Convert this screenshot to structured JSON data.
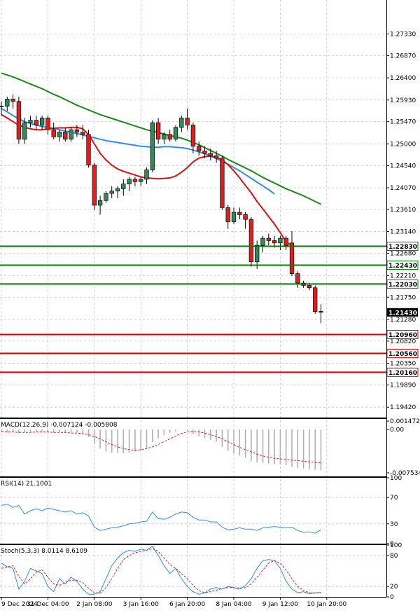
{
  "chart_data": {
    "type": "candlestick",
    "main": {
      "ylim": [
        1.192,
        1.2805
      ],
      "y_ticks": [
        "1.27330",
        "1.26870",
        "1.26400",
        "1.25930",
        "1.25470",
        "1.25000",
        "1.24540",
        "1.24070",
        "1.23610",
        "1.23140",
        "1.22680",
        "1.22210",
        "1.21750",
        "1.21280",
        "1.20820",
        "1.20350",
        "1.19890",
        "1.19420"
      ],
      "current_price": "1.21430",
      "levels": [
        {
          "value": 1.2283,
          "label": "1.22830",
          "color": "#008000"
        },
        {
          "value": 1.2243,
          "label": "1.22430",
          "color": "#008000"
        },
        {
          "value": 1.2203,
          "label": "1.22030",
          "color": "#008000"
        },
        {
          "value": 1.2096,
          "label": "1.20960",
          "color": "#dd0000"
        },
        {
          "value": 1.2056,
          "label": "1.20560",
          "color": "#dd0000"
        },
        {
          "value": 1.2016,
          "label": "1.20160",
          "color": "#dd0000"
        }
      ],
      "candles": [
        [
          1.258,
          1.259,
          1.256,
          1.258
        ],
        [
          1.258,
          1.26,
          1.257,
          1.2595
        ],
        [
          1.2595,
          1.2605,
          1.2575,
          1.259
        ],
        [
          1.259,
          1.26,
          1.25,
          1.251
        ],
        [
          1.251,
          1.2555,
          1.25,
          1.2545
        ],
        [
          1.2545,
          1.256,
          1.2535,
          1.255
        ],
        [
          1.255,
          1.256,
          1.253,
          1.254
        ],
        [
          1.254,
          1.256,
          1.253,
          1.2555
        ],
        [
          1.2555,
          1.256,
          1.252,
          1.253
        ],
        [
          1.253,
          1.2545,
          1.251,
          1.2515
        ],
        [
          1.2515,
          1.253,
          1.2505,
          1.2525
        ],
        [
          1.2525,
          1.2535,
          1.2505,
          1.251
        ],
        [
          1.251,
          1.2535,
          1.2505,
          1.253
        ],
        [
          1.253,
          1.254,
          1.2515,
          1.2525
        ],
        [
          1.2525,
          1.254,
          1.251,
          1.252
        ],
        [
          1.252,
          1.253,
          1.245,
          1.2455
        ],
        [
          1.2455,
          1.246,
          1.236,
          1.237
        ],
        [
          1.237,
          1.239,
          1.235,
          1.238
        ],
        [
          1.238,
          1.24,
          1.2375,
          1.2395
        ],
        [
          1.2395,
          1.241,
          1.2385,
          1.24
        ],
        [
          1.24,
          1.241,
          1.2385,
          1.2405
        ],
        [
          1.2405,
          1.2425,
          1.239,
          1.2415
        ],
        [
          1.2415,
          1.243,
          1.24,
          1.2425
        ],
        [
          1.2425,
          1.243,
          1.241,
          1.242
        ],
        [
          1.242,
          1.243,
          1.241,
          1.2425
        ],
        [
          1.2425,
          1.245,
          1.2415,
          1.2445
        ],
        [
          1.2445,
          1.255,
          1.244,
          1.2545
        ],
        [
          1.2545,
          1.2555,
          1.25,
          1.251
        ],
        [
          1.251,
          1.2525,
          1.25,
          1.252
        ],
        [
          1.252,
          1.253,
          1.2505,
          1.251
        ],
        [
          1.251,
          1.254,
          1.2505,
          1.2535
        ],
        [
          1.2535,
          1.256,
          1.2525,
          1.2555
        ],
        [
          1.2555,
          1.2575,
          1.253,
          1.254
        ],
        [
          1.254,
          1.2545,
          1.248,
          1.2495
        ],
        [
          1.2495,
          1.2505,
          1.2475,
          1.2485
        ],
        [
          1.2485,
          1.2495,
          1.247,
          1.248
        ],
        [
          1.248,
          1.249,
          1.2465,
          1.2475
        ],
        [
          1.2475,
          1.2485,
          1.246,
          1.247
        ],
        [
          1.247,
          1.2475,
          1.236,
          1.2365
        ],
        [
          1.2365,
          1.237,
          1.232,
          1.2335
        ],
        [
          1.2335,
          1.2365,
          1.233,
          1.2355
        ],
        [
          1.2355,
          1.2365,
          1.234,
          1.235
        ],
        [
          1.235,
          1.2355,
          1.232,
          1.234
        ],
        [
          1.234,
          1.2345,
          1.224,
          1.225
        ],
        [
          1.225,
          1.2295,
          1.2235,
          1.2285
        ],
        [
          1.2285,
          1.2305,
          1.227,
          1.23
        ],
        [
          1.23,
          1.231,
          1.2285,
          1.2295
        ],
        [
          1.2295,
          1.2305,
          1.228,
          1.229
        ],
        [
          1.229,
          1.2305,
          1.2275,
          1.23
        ],
        [
          1.23,
          1.2305,
          1.2275,
          1.2285
        ],
        [
          1.229,
          1.2315,
          1.222,
          1.2225
        ],
        [
          1.2225,
          1.223,
          1.2195,
          1.2205
        ],
        [
          1.2205,
          1.221,
          1.2195,
          1.22
        ],
        [
          1.22,
          1.2205,
          1.219,
          1.2195
        ],
        [
          1.2195,
          1.22,
          1.214,
          1.2145
        ],
        [
          1.2145,
          1.216,
          1.212,
          1.2143
        ]
      ],
      "ma_fast": [
        1.2562,
        1.2555,
        1.2547,
        1.254,
        1.2535,
        1.2532,
        1.253,
        1.253,
        1.2532,
        1.2533,
        1.2534,
        1.2534,
        1.2535,
        1.2535,
        1.2532,
        1.252,
        1.25,
        1.248,
        1.2466,
        1.2455,
        1.2447,
        1.2442,
        1.2438,
        1.2434,
        1.243,
        1.2428,
        1.2427,
        1.2426,
        1.2427,
        1.2428,
        1.2432,
        1.244,
        1.245,
        1.2462,
        1.247,
        1.2473,
        1.2474,
        1.2472,
        1.2466,
        1.2456,
        1.2443,
        1.2428,
        1.2412,
        1.2396,
        1.2378,
        1.2362,
        1.2346,
        1.233,
        1.2312,
        1.2292,
        1.2285
      ],
      "ma_mid": [
        1.2575,
        1.2568,
        1.256,
        1.2553,
        1.2547,
        1.2543,
        1.254,
        1.2537,
        1.2535,
        1.2533,
        1.253,
        1.2527,
        1.2525,
        1.2522,
        1.2519,
        1.2516,
        1.2513,
        1.251,
        1.2507,
        1.2505,
        1.2503,
        1.2501,
        1.2499,
        1.2497,
        1.2495,
        1.2494,
        1.2493,
        1.2493,
        1.2494,
        1.2494,
        1.2493,
        1.2492,
        1.249,
        1.2487,
        1.2483,
        1.2479,
        1.2474,
        1.2469,
        1.2463,
        1.2457,
        1.245,
        1.2443,
        1.2435,
        1.2427,
        1.2419,
        1.2411,
        1.2403,
        1.2394
      ],
      "ma_slow": [
        1.265,
        1.2646,
        1.2642,
        1.2637,
        1.2632,
        1.2627,
        1.2622,
        1.2617,
        1.2611,
        1.2605,
        1.26,
        1.2594,
        1.2588,
        1.2582,
        1.2577,
        1.2572,
        1.2567,
        1.2562,
        1.2558,
        1.2554,
        1.255,
        1.2546,
        1.2542,
        1.2538,
        1.2534,
        1.253,
        1.2527,
        1.2524,
        1.2521,
        1.2518,
        1.2515,
        1.2512,
        1.2508,
        1.2503,
        1.2498,
        1.2492,
        1.2486,
        1.248,
        1.2474,
        1.2467,
        1.2461,
        1.2455,
        1.2449,
        1.2443,
        1.2436,
        1.2429,
        1.2423,
        1.2417,
        1.2411,
        1.2405,
        1.24,
        1.2395,
        1.239,
        1.2384,
        1.2378,
        1.2372
      ]
    },
    "macd": {
      "label": "MACD(12,26,9) -0.007124 -0.005808",
      "ylim": [
        -0.00815,
        0.00185
      ],
      "ticks": [
        {
          "value": 0.001472,
          "label": "0.001472"
        },
        {
          "value": 0.0,
          "label": "0.00"
        },
        {
          "value": -0.007534,
          "label": "-0.007534"
        }
      ],
      "histogram": [
        -0.0004,
        -0.0005,
        -0.0004,
        -0.0006,
        -0.0005,
        -0.0004,
        -0.0004,
        -0.0003,
        -0.0004,
        -0.0005,
        -0.0005,
        -0.0006,
        -0.0005,
        -0.0005,
        -0.0006,
        -0.0013,
        -0.0025,
        -0.0033,
        -0.0038,
        -0.004,
        -0.0041,
        -0.0041,
        -0.004,
        -0.0038,
        -0.0036,
        -0.0033,
        -0.0022,
        -0.0015,
        -0.001,
        -0.0006,
        -0.0003,
        0.0,
        -0.0002,
        -0.0008,
        -0.0012,
        -0.0015,
        -0.0018,
        -0.0021,
        -0.003,
        -0.0037,
        -0.0042,
        -0.0045,
        -0.0049,
        -0.0055,
        -0.0057,
        -0.0058,
        -0.0059,
        -0.006,
        -0.0061,
        -0.0062,
        -0.0065,
        -0.0067,
        -0.0068,
        -0.0069,
        -0.007,
        -0.0071
      ],
      "signal": [
        -0.0003,
        -0.0004,
        -0.0004,
        -0.0005,
        -0.0005,
        -0.0005,
        -0.0004,
        -0.0004,
        -0.0004,
        -0.0005,
        -0.0005,
        -0.0005,
        -0.0006,
        -0.0006,
        -0.0007,
        -0.0009,
        -0.0012,
        -0.0016,
        -0.0021,
        -0.0026,
        -0.003,
        -0.0033,
        -0.0035,
        -0.0036,
        -0.0035,
        -0.0033,
        -0.003,
        -0.0026,
        -0.0021,
        -0.0016,
        -0.0011,
        -0.0007,
        -0.0004,
        -0.0003,
        -0.0004,
        -0.0006,
        -0.0009,
        -0.0012,
        -0.0016,
        -0.0021,
        -0.0026,
        -0.0031,
        -0.0035,
        -0.0039,
        -0.0043,
        -0.0046,
        -0.0048,
        -0.005,
        -0.0051,
        -0.0052,
        -0.0053,
        -0.0054,
        -0.0055,
        -0.0056,
        -0.0057,
        -0.0058
      ]
    },
    "rsi": {
      "label": "RSI(14) 21.1001",
      "ylim": [
        0,
        100
      ],
      "ticks": [
        100,
        70,
        30,
        0
      ],
      "values": [
        58,
        60,
        55,
        58,
        45,
        50,
        53,
        50,
        54,
        52,
        50,
        48,
        50,
        45,
        47,
        42,
        25,
        20,
        22,
        24,
        25,
        27,
        30,
        31,
        33,
        34,
        48,
        38,
        37,
        40,
        45,
        48,
        47,
        40,
        36,
        36,
        33,
        33,
        25,
        21,
        22,
        24,
        22,
        22,
        20,
        24,
        25,
        26,
        25,
        24,
        25,
        20,
        17,
        18,
        16,
        21
      ]
    },
    "stoch": {
      "label": "Stoch(5,3,3) 8.0114 8.6109",
      "ylim": [
        0,
        100
      ],
      "ticks": [
        100,
        80,
        20,
        0
      ],
      "main_line": [
        65,
        58,
        55,
        15,
        30,
        55,
        50,
        45,
        20,
        10,
        35,
        25,
        38,
        30,
        15,
        5,
        5,
        10,
        35,
        60,
        75,
        85,
        90,
        88,
        92,
        90,
        98,
        80,
        60,
        45,
        55,
        35,
        20,
        10,
        5,
        8,
        15,
        18,
        15,
        20,
        18,
        15,
        22,
        35,
        55,
        70,
        72,
        70,
        55,
        30,
        15,
        8,
        10,
        6,
        8,
        8
      ],
      "signal_line": [
        55,
        58,
        60,
        40,
        25,
        35,
        48,
        52,
        38,
        25,
        22,
        28,
        32,
        32,
        28,
        17,
        8,
        7,
        18,
        35,
        55,
        72,
        80,
        85,
        88,
        90,
        93,
        88,
        75,
        62,
        55,
        45,
        35,
        22,
        12,
        8,
        10,
        13,
        16,
        18,
        18,
        17,
        18,
        25,
        38,
        52,
        65,
        70,
        65,
        52,
        35,
        20,
        12,
        8,
        8,
        8.6
      ]
    },
    "x_labels": [
      {
        "label": "9 Dec 2024",
        "index": 0
      },
      {
        "label": "31 Dec 04:00",
        "index": 8
      },
      {
        "label": "2 Jan 08:00",
        "index": 16
      },
      {
        "label": "3 Jan 16:00",
        "index": 24
      },
      {
        "label": "6 Jan 20:00",
        "index": 32
      },
      {
        "label": "8 Jan 04:00",
        "index": 40
      },
      {
        "label": "9 Jan 12:00",
        "index": 48
      },
      {
        "label": "10 Jan 20:00",
        "index": 56
      }
    ],
    "colors": {
      "bull_fill": "#2e8b57",
      "bear_fill": "#e02020",
      "candle_line": "#000000",
      "ma_fast": "#dd1111",
      "ma_mid": "#2e8ee8",
      "ma_slow": "#1a8a1a",
      "macd_signal": "#dd2222",
      "macd_hist": "#b0b0b0",
      "rsi": "#2e8ee8",
      "stoch_main": "#2e8ee8",
      "stoch_signal": "#dd2222",
      "price_tag": "#000000"
    }
  }
}
